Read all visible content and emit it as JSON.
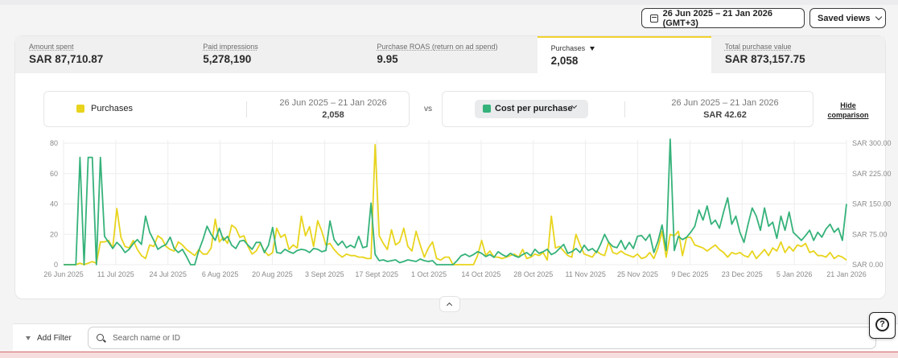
{
  "toolbar": {
    "date_range": "26 Jun 2025 – 21 Jan 2026 (GMT+3)",
    "saved_views": "Saved views"
  },
  "metrics": [
    {
      "label": "Amount spent",
      "value": "SAR 87,710.87",
      "active": false
    },
    {
      "label": "Paid impressions",
      "value": "5,278,190",
      "active": false
    },
    {
      "label": "Purchase ROAS (return on ad spend)",
      "value": "9.95",
      "active": false
    },
    {
      "label": "Purchases",
      "value": "2,058",
      "active": true
    },
    {
      "label": "Total purchase value",
      "value": "SAR 873,157.75",
      "active": false
    }
  ],
  "comparison": {
    "left": {
      "name": "Purchases",
      "range": "26 Jun 2025 – 21 Jan 2026",
      "value": "2,058",
      "color": "#e8d41c"
    },
    "vs": "vs",
    "right": {
      "name": "Cost per purchase",
      "range": "26 Jun 2025 – 21 Jan 2026",
      "value": "SAR 42.62",
      "color": "#35b27a"
    },
    "hide_line1": "Hide",
    "hide_line2": "comparison"
  },
  "chart_data": {
    "type": "line",
    "x_tick_labels": [
      "26 Jun 2025",
      "11 Jul 2025",
      "24 Jul 2025",
      "6 Aug 2025",
      "20 Aug 2025",
      "3 Sept 2025",
      "17 Sept 2025",
      "1 Oct 2025",
      "14 Oct 2025",
      "28 Oct 2025",
      "11 Nov 2025",
      "25 Nov 2025",
      "9 Dec 2025",
      "23 Dec 2025",
      "5 Jan 2026",
      "21 Jan 2026"
    ],
    "y_left": {
      "ticks": [
        "0",
        "20",
        "40",
        "60",
        "80"
      ],
      "range": [
        0,
        80
      ]
    },
    "y_right": {
      "ticks": [
        "SAR 0.00",
        "SAR 75.00",
        "SAR 150.00",
        "SAR 225.00",
        "SAR 300.00"
      ],
      "range": [
        0,
        300
      ]
    },
    "grid": true,
    "series": [
      {
        "name": "Purchases",
        "axis": "left",
        "color": "#e8d41c",
        "values": [
          0,
          0,
          0,
          0,
          1,
          0,
          1,
          2,
          1,
          15,
          15,
          16,
          11,
          37,
          18,
          12,
          11,
          16,
          10,
          6,
          4,
          13,
          12,
          19,
          17,
          12,
          10,
          9,
          15,
          13,
          10,
          8,
          6,
          10,
          7,
          7,
          11,
          30,
          15,
          18,
          14,
          26,
          24,
          18,
          19,
          12,
          7,
          9,
          14,
          9,
          6,
          8,
          24,
          18,
          20,
          10,
          13,
          11,
          32,
          19,
          25,
          12,
          29,
          22,
          13,
          14,
          10,
          7,
          5,
          7,
          6,
          6,
          5,
          5,
          4,
          4,
          79,
          19,
          14,
          10,
          23,
          13,
          15,
          24,
          12,
          9,
          22,
          13,
          5,
          11,
          15,
          4,
          3,
          5,
          5,
          0,
          0,
          0,
          0,
          0,
          0,
          6,
          16,
          6,
          9,
          5,
          5,
          4,
          5,
          6,
          7,
          5,
          10,
          4,
          5,
          7,
          6,
          8,
          3,
          32,
          11,
          12,
          9,
          6,
          5,
          20,
          13,
          7,
          6,
          5,
          9,
          7,
          6,
          15,
          8,
          7,
          9,
          7,
          6,
          5,
          7,
          4,
          5,
          8,
          4,
          11,
          22,
          5,
          20,
          19,
          22,
          6,
          18,
          18,
          13,
          12,
          11,
          9,
          11,
          13,
          10,
          8,
          5,
          8,
          7,
          8,
          6,
          5,
          9,
          4,
          7,
          10,
          6,
          11,
          9,
          15,
          8,
          12,
          9,
          13,
          12,
          14,
          8,
          9,
          6,
          6,
          5,
          8,
          4,
          6,
          5,
          3
        ]
      },
      {
        "name": "Cost per purchase",
        "axis": "right",
        "color": "#35b27a",
        "values": [
          0,
          0,
          0,
          0,
          265,
          0,
          265,
          265,
          0,
          265,
          70,
          55,
          40,
          55,
          45,
          30,
          38,
          52,
          62,
          50,
          120,
          80,
          60,
          38,
          45,
          50,
          68,
          40,
          30,
          38,
          20,
          0,
          0,
          35,
          62,
          95,
          75,
          60,
          90,
          60,
          70,
          48,
          40,
          58,
          60,
          48,
          38,
          55,
          55,
          30,
          48,
          92,
          30,
          28,
          38,
          32,
          28,
          35,
          38,
          36,
          30,
          40,
          38,
          32,
          35,
          108,
          62,
          48,
          58,
          42,
          48,
          42,
          70,
          42,
          45,
          152,
          25,
          10,
          12,
          8,
          10,
          12,
          5,
          8,
          12,
          10,
          8,
          14,
          10,
          8,
          10,
          0,
          0,
          0,
          0,
          0,
          10,
          22,
          26,
          20,
          25,
          32,
          28,
          20,
          25,
          18,
          32,
          25,
          20,
          28,
          22,
          18,
          25,
          30,
          22,
          38,
          28,
          32,
          38,
          25,
          30,
          40,
          50,
          28,
          32,
          40,
          30,
          48,
          35,
          40,
          30,
          50,
          75,
          55,
          45,
          42,
          60,
          38,
          55,
          40,
          70,
          72,
          60,
          75,
          30,
          58,
          98,
          35,
          310,
          35,
          70,
          62,
          68,
          80,
          95,
          135,
          110,
          145,
          100,
          110,
          90,
          130,
          165,
          100,
          120,
          80,
          55,
          100,
          140,
          120,
          85,
          140,
          95,
          105,
          65,
          120,
          85,
          130,
          80,
          70,
          60,
          72,
          85,
          60,
          80,
          68,
          88,
          100,
          80,
          90,
          60,
          150
        ]
      }
    ]
  },
  "filter": {
    "add_filter": "Add Filter",
    "search_placeholder": "Search name or ID"
  },
  "icons": {
    "calendar": "calendar-icon",
    "chevron": "chevron-down-icon",
    "search": "search-icon",
    "help": "help-icon",
    "collapse": "chevron-up-icon"
  }
}
